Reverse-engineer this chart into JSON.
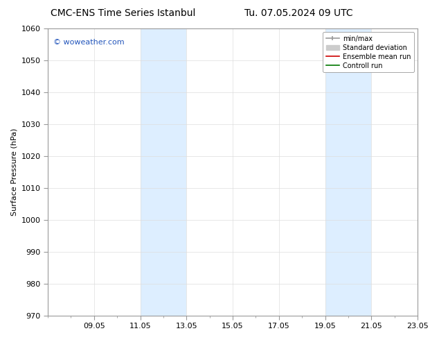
{
  "title_left": "CMC-ENS Time Series Istanbul",
  "title_right": "Tu. 07.05.2024 09 UTC",
  "ylabel": "Surface Pressure (hPa)",
  "ylim": [
    970,
    1060
  ],
  "yticks": [
    970,
    980,
    990,
    1000,
    1010,
    1020,
    1030,
    1040,
    1050,
    1060
  ],
  "xtick_labels": [
    "09.05",
    "11.05",
    "13.05",
    "15.05",
    "17.05",
    "19.05",
    "21.05",
    "23.05"
  ],
  "xtick_positions": [
    2,
    4,
    6,
    8,
    10,
    12,
    14,
    16
  ],
  "xlim": [
    0,
    16
  ],
  "shaded_bands": [
    {
      "x_start": 4,
      "x_end": 6
    },
    {
      "x_start": 12,
      "x_end": 14
    }
  ],
  "shaded_color": "#ddeeff",
  "watermark_text": "© woweather.com",
  "watermark_color": "#2255bb",
  "legend_entries": [
    {
      "label": "min/max",
      "color": "#999999",
      "lw": 1.2
    },
    {
      "label": "Standard deviation",
      "color": "#cccccc",
      "lw": 6
    },
    {
      "label": "Ensemble mean run",
      "color": "#cc0000",
      "lw": 1.2
    },
    {
      "label": "Controll run",
      "color": "#007700",
      "lw": 1.2
    }
  ],
  "bg_color": "#ffffff",
  "grid_color": "#dddddd",
  "spine_color": "#999999",
  "font_color": "#000000",
  "title_fontsize": 10,
  "ylabel_fontsize": 8,
  "tick_fontsize": 8,
  "legend_fontsize": 7,
  "watermark_fontsize": 8
}
